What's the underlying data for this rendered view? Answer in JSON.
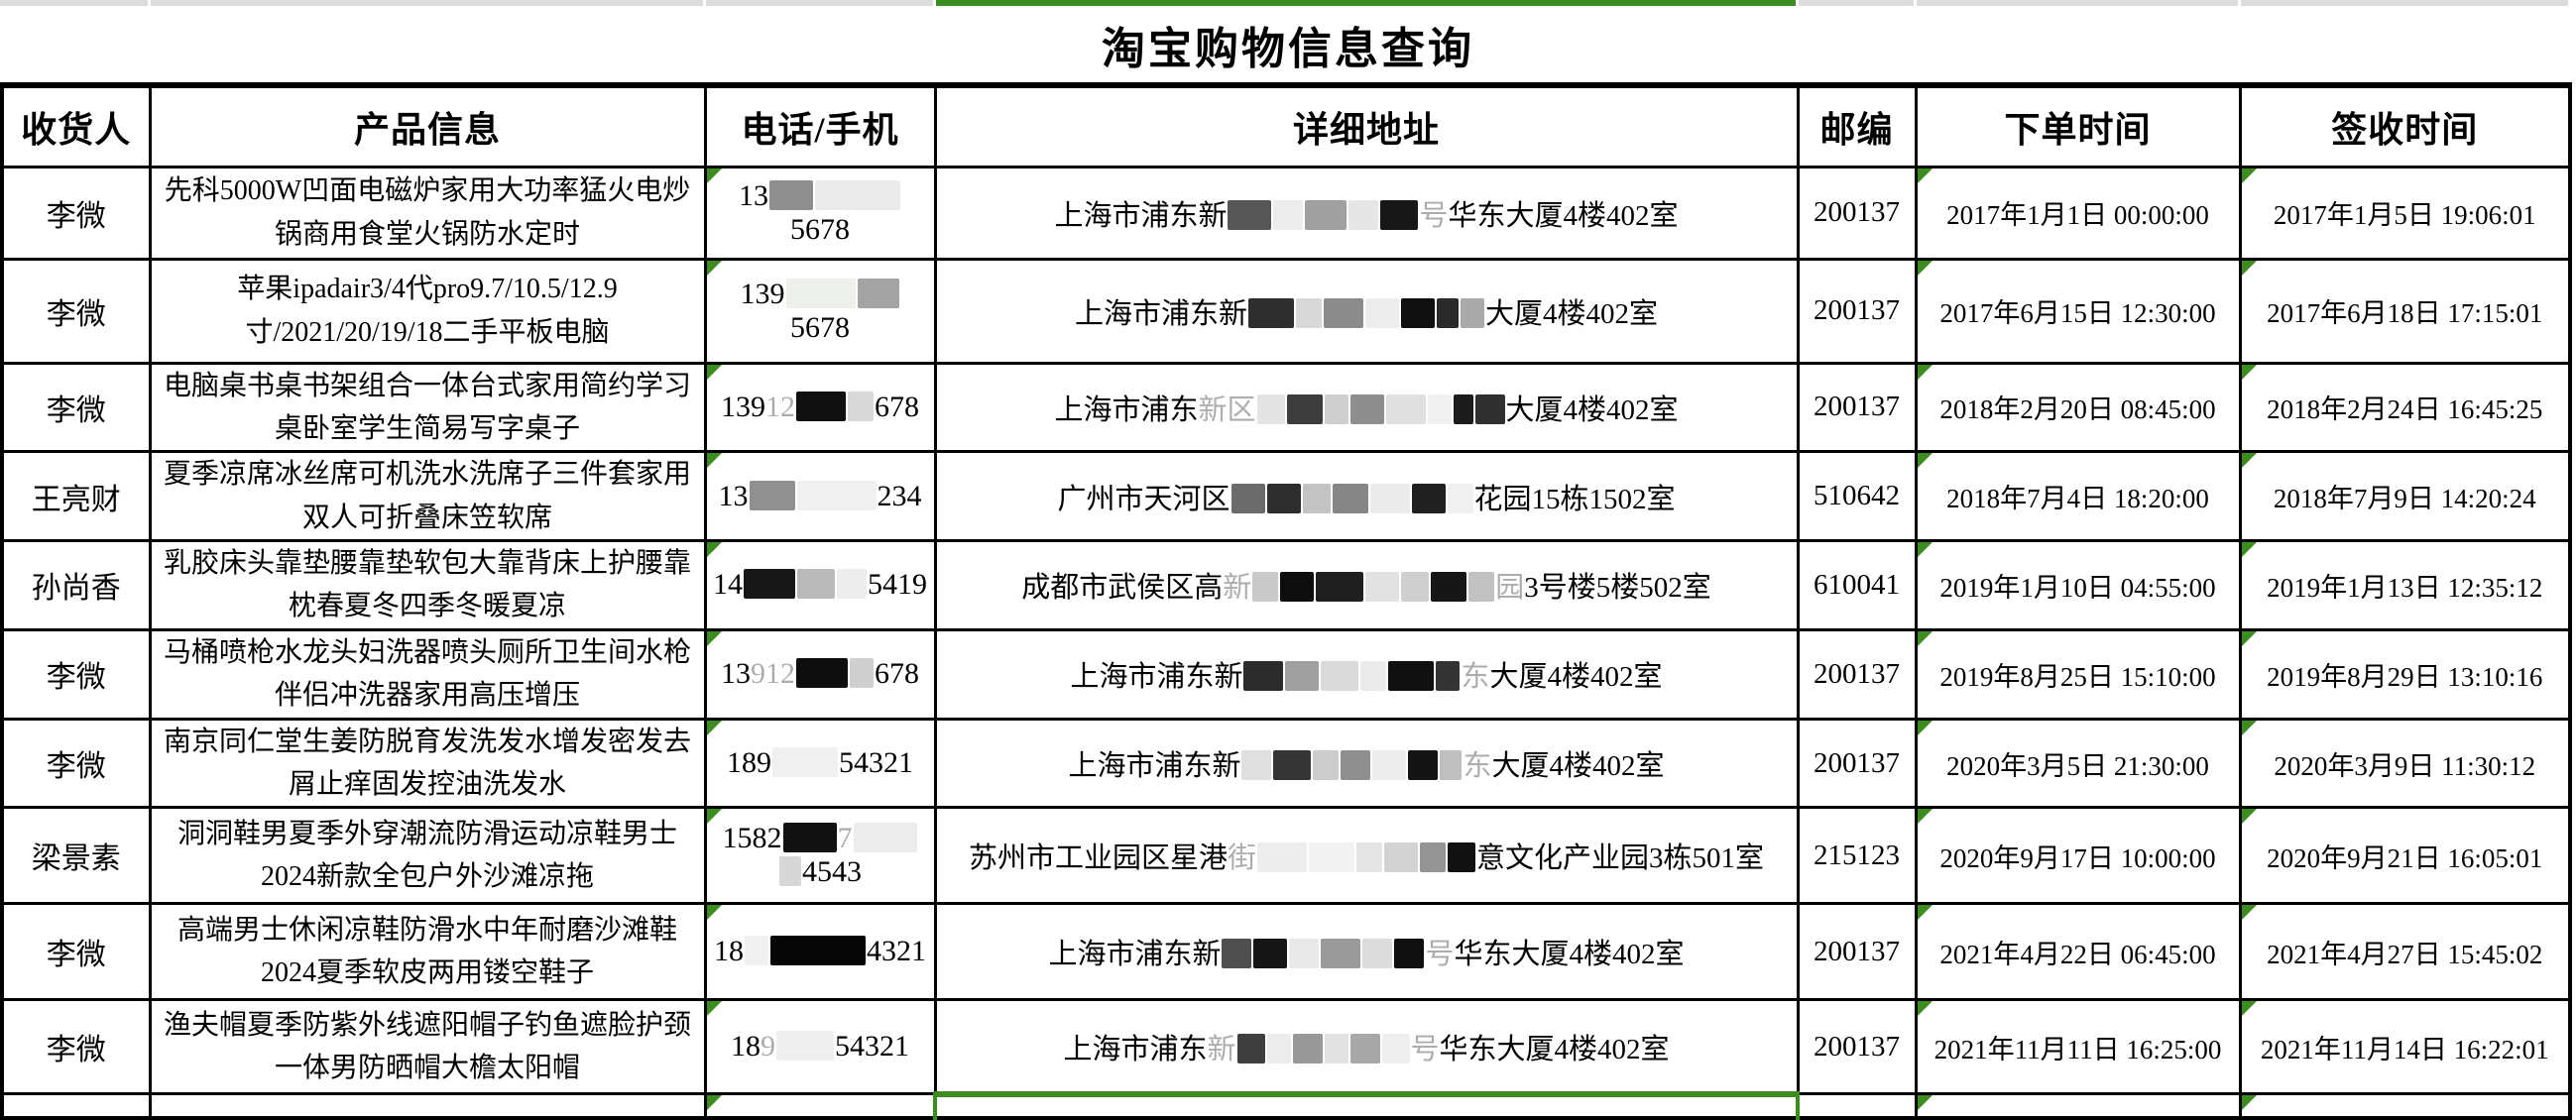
{
  "app": {
    "title": "淘宝购物信息查询"
  },
  "colors": {
    "accent_green": "#3c8c20",
    "grid_line": "#000000",
    "strip_gray": "#dcdcdc",
    "background": "#ffffff"
  },
  "icons": {
    "cell_flag": "green-corner-triangle"
  },
  "table": {
    "columns": [
      {
        "key": "recipient",
        "label": "收货人"
      },
      {
        "key": "product",
        "label": "产品信息"
      },
      {
        "key": "phone",
        "label": "电话/手机"
      },
      {
        "key": "address",
        "label": "详细地址"
      },
      {
        "key": "postal",
        "label": "邮编"
      },
      {
        "key": "order_time",
        "label": "下单时间"
      },
      {
        "key": "sign_time",
        "label": "签收时间"
      }
    ],
    "rows": [
      {
        "recipient": "李微",
        "product": "先科5000W凹面电磁炉家用大功率猛火电炒锅商用食堂火锅防水定时",
        "phone_segments": [
          {
            "type": "text",
            "value": "13"
          },
          {
            "type": "box",
            "color": "#8f8f8f",
            "width": 44
          },
          {
            "type": "box",
            "color": "#ebebeb",
            "width": 86
          },
          {
            "type": "text",
            "value": "5678"
          }
        ],
        "address_segments": [
          {
            "type": "text",
            "value": "上海市浦东新"
          },
          {
            "type": "box",
            "color": "#565656",
            "width": 44
          },
          {
            "type": "box",
            "color": "#ececec",
            "width": 30
          },
          {
            "type": "box",
            "color": "#a0a0a0",
            "width": 42
          },
          {
            "type": "box",
            "color": "#e6e6e6",
            "width": 30
          },
          {
            "type": "box",
            "color": "#171717",
            "width": 38
          },
          {
            "type": "faint",
            "value": "号"
          },
          {
            "type": "text",
            "value": "华东大厦4楼402室"
          }
        ],
        "postal": "200137",
        "order_time": "2017年1月1日 00:00:00",
        "sign_time": "2017年1月5日 19:06:01"
      },
      {
        "recipient": "李微",
        "product": "苹果ipadair3/4代pro9.7/10.5/12.9寸/2021/20/19/18二手平板电脑",
        "phone_segments": [
          {
            "type": "text",
            "value": "139"
          },
          {
            "type": "box",
            "color": "#eef0ec",
            "width": 70
          },
          {
            "type": "box",
            "color": "#a4a4a4",
            "width": 42
          },
          {
            "type": "text",
            "value": "5678"
          }
        ],
        "address_segments": [
          {
            "type": "text",
            "value": "上海市浦东新"
          },
          {
            "type": "box",
            "color": "#2e2e2e",
            "width": 46
          },
          {
            "type": "box",
            "color": "#d8d8d8",
            "width": 26
          },
          {
            "type": "box",
            "color": "#8b8b8b",
            "width": 40
          },
          {
            "type": "box",
            "color": "#ededed",
            "width": 34
          },
          {
            "type": "box",
            "color": "#0f0f0f",
            "width": 34
          },
          {
            "type": "box",
            "color": "#2a2a2a",
            "width": 22
          },
          {
            "type": "box",
            "color": "#aaaaaa",
            "width": 24
          },
          {
            "type": "text",
            "value": "大厦4楼402室"
          }
        ],
        "postal": "200137",
        "order_time": "2017年6月15日 12:30:00",
        "sign_time": "2017年6月18日 17:15:01"
      },
      {
        "recipient": "李微",
        "product": "电脑桌书桌书架组合一体台式家用简约学习桌卧室学生简易写字桌子",
        "phone_segments": [
          {
            "type": "text",
            "value": "139"
          },
          {
            "type": "faint",
            "value": "12"
          },
          {
            "type": "box",
            "color": "#101010",
            "width": 50
          },
          {
            "type": "box",
            "color": "#d9d9d9",
            "width": 26
          },
          {
            "type": "text",
            "value": "678"
          }
        ],
        "address_segments": [
          {
            "type": "text",
            "value": "上海市浦东"
          },
          {
            "type": "faint",
            "value": "新区"
          },
          {
            "type": "box",
            "color": "#e4e4e4",
            "width": 28
          },
          {
            "type": "box",
            "color": "#3c3c3c",
            "width": 36
          },
          {
            "type": "box",
            "color": "#cfcfcf",
            "width": 24
          },
          {
            "type": "box",
            "color": "#8e8e8e",
            "width": 34
          },
          {
            "type": "box",
            "color": "#e0e0e0",
            "width": 40
          },
          {
            "type": "box",
            "color": "#f0f0f0",
            "width": 24
          },
          {
            "type": "box",
            "color": "#1b1b1b",
            "width": 20
          },
          {
            "type": "box",
            "color": "#2f2f2f",
            "width": 30
          },
          {
            "type": "text",
            "value": "大厦4楼402室"
          }
        ],
        "postal": "200137",
        "order_time": "2018年2月20日 08:45:00",
        "sign_time": "2018年2月24日 16:45:25"
      },
      {
        "recipient": "王亮财",
        "product": "夏季凉席冰丝席可机洗水洗席子三件套家用双人可折叠床笠软席",
        "phone_segments": [
          {
            "type": "text",
            "value": "13"
          },
          {
            "type": "box",
            "color": "#909090",
            "width": 46
          },
          {
            "type": "box",
            "color": "#f0f0f0",
            "width": 80
          },
          {
            "type": "text",
            "value": "234"
          }
        ],
        "address_segments": [
          {
            "type": "text",
            "value": "广州市天河区"
          },
          {
            "type": "box",
            "color": "#6b6b6b",
            "width": 34
          },
          {
            "type": "box",
            "color": "#2d2d2d",
            "width": 34
          },
          {
            "type": "box",
            "color": "#c4c4c4",
            "width": 28
          },
          {
            "type": "box",
            "color": "#868686",
            "width": 36
          },
          {
            "type": "box",
            "color": "#ebebeb",
            "width": 40
          },
          {
            "type": "box",
            "color": "#202020",
            "width": 34
          },
          {
            "type": "box",
            "color": "#f0f0f0",
            "width": 26
          },
          {
            "type": "text",
            "value": "花园15栋1502室"
          }
        ],
        "postal": "510642",
        "order_time": "2018年7月4日 18:20:00",
        "sign_time": "2018年7月9日 14:20:24"
      },
      {
        "recipient": "孙尚香",
        "product": "乳胶床头靠垫腰靠垫软包大靠背床上护腰靠枕春夏冬四季冬暖夏凉",
        "phone_segments": [
          {
            "type": "text",
            "value": "14"
          },
          {
            "type": "box",
            "color": "#171717",
            "width": 52
          },
          {
            "type": "box",
            "color": "#bababa",
            "width": 38
          },
          {
            "type": "box",
            "color": "#ededed",
            "width": 30
          },
          {
            "type": "text",
            "value": "5419"
          }
        ],
        "address_segments": [
          {
            "type": "text",
            "value": "成都市武侯区高"
          },
          {
            "type": "faint",
            "value": "新"
          },
          {
            "type": "box",
            "color": "#c9c9c9",
            "width": 26
          },
          {
            "type": "box",
            "color": "#0d0d0d",
            "width": 34
          },
          {
            "type": "box",
            "color": "#1f1f1f",
            "width": 48
          },
          {
            "type": "box",
            "color": "#e2e2e2",
            "width": 34
          },
          {
            "type": "box",
            "color": "#cfcfcf",
            "width": 28
          },
          {
            "type": "box",
            "color": "#161616",
            "width": 36
          },
          {
            "type": "box",
            "color": "#c2c2c2",
            "width": 26
          },
          {
            "type": "faint",
            "value": "园"
          },
          {
            "type": "text",
            "value": "3号楼5楼502室"
          }
        ],
        "postal": "610041",
        "order_time": "2019年1月10日 04:55:00",
        "sign_time": "2019年1月13日 12:35:12"
      },
      {
        "recipient": "李微",
        "product": "马桶喷枪水龙头妇洗器喷头厕所卫生间水枪伴侣冲洗器家用高压增压",
        "phone_segments": [
          {
            "type": "text",
            "value": "13"
          },
          {
            "type": "faint",
            "value": "912"
          },
          {
            "type": "box",
            "color": "#0d0d0d",
            "width": 52
          },
          {
            "type": "box",
            "color": "#cfcfcf",
            "width": 24
          },
          {
            "type": "text",
            "value": "678"
          }
        ],
        "address_segments": [
          {
            "type": "text",
            "value": "上海市浦东新"
          },
          {
            "type": "box",
            "color": "#2b2b2b",
            "width": 40
          },
          {
            "type": "box",
            "color": "#9f9f9f",
            "width": 34
          },
          {
            "type": "box",
            "color": "#dadada",
            "width": 38
          },
          {
            "type": "box",
            "color": "#ebebeb",
            "width": 26
          },
          {
            "type": "box",
            "color": "#101010",
            "width": 46
          },
          {
            "type": "box",
            "color": "#343434",
            "width": 24
          },
          {
            "type": "faint",
            "value": "东"
          },
          {
            "type": "text",
            "value": "大厦4楼402室"
          }
        ],
        "postal": "200137",
        "order_time": "2019年8月25日 15:10:00",
        "sign_time": "2019年8月29日 13:10:16"
      },
      {
        "recipient": "李微",
        "product": "南京同仁堂生姜防脱育发洗发水增发密发去屑止痒固发控油洗发水",
        "phone_segments": [
          {
            "type": "text",
            "value": "189"
          },
          {
            "type": "box",
            "color": "#f0f0f0",
            "width": 66
          },
          {
            "type": "text",
            "value": "54321"
          }
        ],
        "address_segments": [
          {
            "type": "text",
            "value": "上海市浦东新"
          },
          {
            "type": "box",
            "color": "#dfdfdf",
            "width": 30
          },
          {
            "type": "box",
            "color": "#353535",
            "width": 38
          },
          {
            "type": "box",
            "color": "#cccccc",
            "width": 26
          },
          {
            "type": "box",
            "color": "#8f8f8f",
            "width": 30
          },
          {
            "type": "box",
            "color": "#ededed",
            "width": 34
          },
          {
            "type": "box",
            "color": "#141414",
            "width": 30
          },
          {
            "type": "box",
            "color": "#bfbfbf",
            "width": 22
          },
          {
            "type": "faint",
            "value": "东"
          },
          {
            "type": "text",
            "value": "大厦4楼402室"
          }
        ],
        "postal": "200137",
        "order_time": "2020年3月5日 21:30:00",
        "sign_time": "2020年3月9日 11:30:12"
      },
      {
        "recipient": "梁景素",
        "product": "洞洞鞋男夏季外穿潮流防滑运动凉鞋男士2024新款全包户外沙滩凉拖",
        "phone_segments": [
          {
            "type": "text",
            "value": "1582"
          },
          {
            "type": "box",
            "color": "#121212",
            "width": 54
          },
          {
            "type": "faint",
            "value": "7"
          },
          {
            "type": "box",
            "color": "#ececec",
            "width": 64
          },
          {
            "type": "box",
            "color": "#d7d7d7",
            "width": 22
          },
          {
            "type": "text",
            "value": "4543"
          }
        ],
        "address_segments": [
          {
            "type": "text",
            "value": "苏州市工业园区星港"
          },
          {
            "type": "faint",
            "value": "街"
          },
          {
            "type": "box",
            "color": "#ededed",
            "width": 50
          },
          {
            "type": "box",
            "color": "#f2f2f2",
            "width": 46
          },
          {
            "type": "box",
            "color": "#e5e5e5",
            "width": 26
          },
          {
            "type": "box",
            "color": "#d2d2d2",
            "width": 34
          },
          {
            "type": "box",
            "color": "#949494",
            "width": 26
          },
          {
            "type": "box",
            "color": "#111111",
            "width": 28
          },
          {
            "type": "text",
            "value": "意文化产业园3栋501室"
          }
        ],
        "postal": "215123",
        "order_time": "2020年9月17日 10:00:00",
        "sign_time": "2020年9月21日 16:05:01"
      },
      {
        "recipient": "李微",
        "product": "高端男士休闲凉鞋防滑水中年耐磨沙滩鞋2024夏季软皮两用镂空鞋子",
        "phone_segments": [
          {
            "type": "text",
            "value": "18"
          },
          {
            "type": "box",
            "color": "#f0f0f0",
            "width": 24
          },
          {
            "type": "box",
            "color": "#060606",
            "width": 96
          },
          {
            "type": "text",
            "value": "4321"
          }
        ],
        "address_segments": [
          {
            "type": "text",
            "value": "上海市浦东新"
          },
          {
            "type": "box",
            "color": "#4f4f4f",
            "width": 30
          },
          {
            "type": "box",
            "color": "#161616",
            "width": 34
          },
          {
            "type": "box",
            "color": "#e9e9e9",
            "width": 30
          },
          {
            "type": "box",
            "color": "#9a9a9a",
            "width": 40
          },
          {
            "type": "box",
            "color": "#dcdcdc",
            "width": 30
          },
          {
            "type": "box",
            "color": "#0f0f0f",
            "width": 30
          },
          {
            "type": "faint",
            "value": "号"
          },
          {
            "type": "text",
            "value": "华东大厦4楼402室"
          }
        ],
        "postal": "200137",
        "order_time": "2021年4月22日 06:45:00",
        "sign_time": "2021年4月27日 15:45:02"
      },
      {
        "recipient": "李微",
        "product": "渔夫帽夏季防紫外线遮阳帽子钓鱼遮脸护颈一体男防晒帽大檐太阳帽",
        "phone_segments": [
          {
            "type": "text",
            "value": "18"
          },
          {
            "type": "faint",
            "value": "9"
          },
          {
            "type": "box",
            "color": "#efefef",
            "width": 58
          },
          {
            "type": "text",
            "value": "54321"
          }
        ],
        "address_segments": [
          {
            "type": "text",
            "value": "上海市浦东"
          },
          {
            "type": "faint",
            "value": "新"
          },
          {
            "type": "box",
            "color": "#3f3f3f",
            "width": 28
          },
          {
            "type": "box",
            "color": "#ececec",
            "width": 24
          },
          {
            "type": "box",
            "color": "#989898",
            "width": 30
          },
          {
            "type": "box",
            "color": "#e1e1e1",
            "width": 24
          },
          {
            "type": "box",
            "color": "#a8a8a8",
            "width": 30
          },
          {
            "type": "box",
            "color": "#efefef",
            "width": 28
          },
          {
            "type": "faint",
            "value": "号"
          },
          {
            "type": "text",
            "value": "华东大厦4楼402室"
          }
        ],
        "postal": "200137",
        "order_time": "2021年11月11日 16:25:00",
        "sign_time": "2021年11月14日 16:22:01"
      }
    ]
  }
}
